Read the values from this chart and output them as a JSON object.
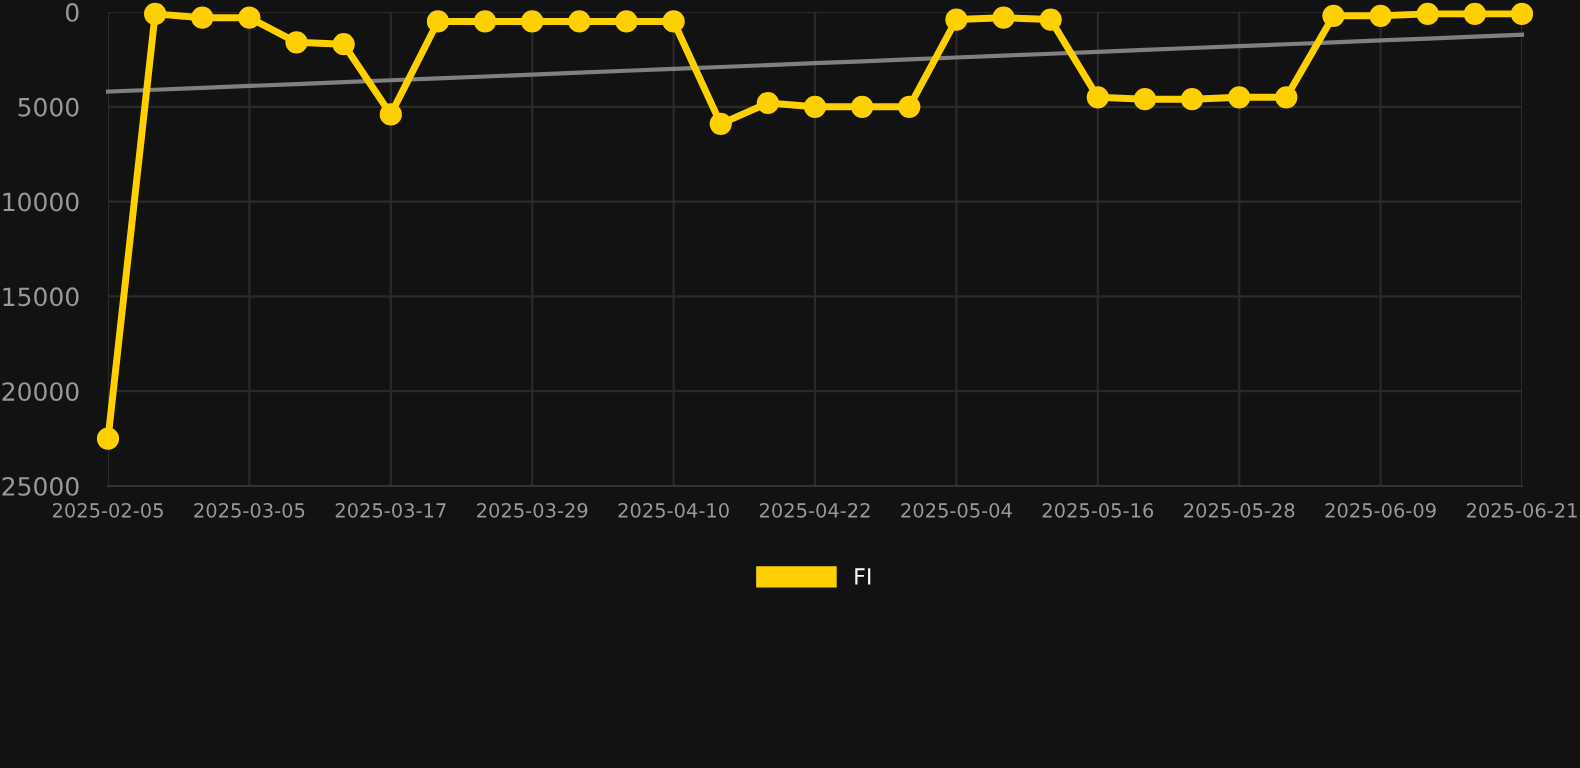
{
  "chart_data": {
    "type": "line",
    "categories": [
      "2025-02-05",
      null,
      null,
      "2025-03-05",
      null,
      null,
      "2025-03-17",
      null,
      null,
      "2025-03-29",
      null,
      null,
      "2025-04-10",
      null,
      null,
      "2025-04-22",
      null,
      null,
      "2025-05-04",
      null,
      null,
      "2025-05-16",
      null,
      null,
      "2025-05-28",
      null,
      null,
      "2025-06-09",
      null,
      null,
      "2025-06-21"
    ],
    "series": [
      {
        "name": "FI",
        "color": "#ffd000",
        "marker": "circle",
        "values": [
          22500,
          100,
          300,
          300,
          1600,
          1700,
          5400,
          500,
          500,
          500,
          500,
          500,
          500,
          5900,
          4800,
          5000,
          5000,
          5000,
          400,
          300,
          400,
          4500,
          4600,
          4600,
          4500,
          4500,
          200,
          200,
          100,
          100,
          100
        ]
      },
      {
        "type": "line",
        "color": "#808080",
        "marker": "none",
        "values": [
          4200,
          4100,
          4000,
          3900,
          3800,
          3700,
          3600,
          3500,
          3400,
          3300,
          3200,
          3100,
          3000,
          2900,
          2800,
          2700,
          2600,
          2500,
          2400,
          2300,
          2200,
          2100,
          2000,
          1900,
          1800,
          1700,
          1600,
          1500,
          1400,
          1300,
          1200
        ]
      }
    ],
    "ylim": [
      25000,
      0
    ],
    "yticks": [
      0,
      5000,
      10000,
      15000,
      20000,
      25000
    ],
    "grid": true,
    "legend": "bottom"
  }
}
